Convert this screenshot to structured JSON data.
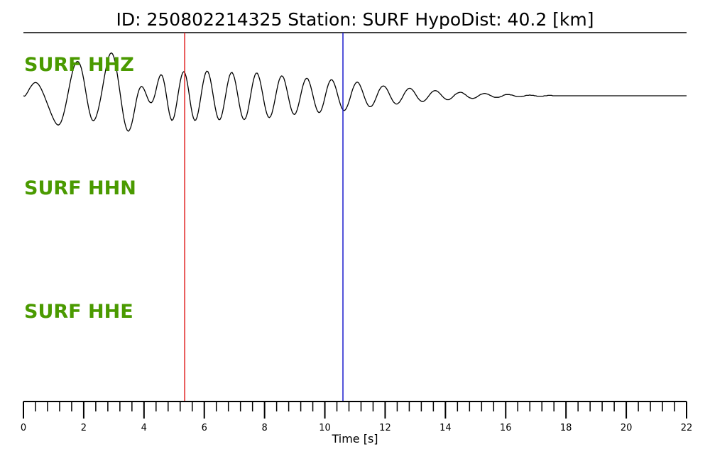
{
  "header": {
    "title": "ID: 250802214325   Station: SURF   HypoDist:    40.2 [km]"
  },
  "chart_data": {
    "type": "line",
    "xlabel": "Time [s]",
    "xlim": [
      0,
      22
    ],
    "x_ticks": [
      0,
      2,
      4,
      6,
      8,
      10,
      12,
      14,
      16,
      18,
      20,
      22
    ],
    "x_tick_labels": [
      "0",
      "2",
      "4",
      "6",
      "8",
      "10",
      "12",
      "14",
      "16",
      "18",
      "20",
      "22"
    ],
    "minor_tick_step": 0.4,
    "grid": false,
    "label_color": "#4a9a00",
    "line_color": "#000000",
    "markers": [
      {
        "time": 5.35,
        "color": "#e02020"
      },
      {
        "time": 10.6,
        "color": "#1a1acc"
      }
    ],
    "series": [
      {
        "name": "SURF HHZ",
        "x_step": 0.04,
        "values": [
          0.0,
          -0.01,
          0.02,
          0.07,
          0.12,
          0.18,
          0.23,
          0.27,
          0.31,
          0.33,
          0.34,
          0.33,
          0.31,
          0.27,
          0.22,
          0.16,
          0.09,
          0.02,
          -0.06,
          -0.14,
          -0.22,
          -0.3,
          -0.38,
          -0.46,
          -0.53,
          -0.6,
          -0.66,
          -0.71,
          -0.74,
          -0.75,
          -0.73,
          -0.69,
          -0.61,
          -0.51,
          -0.39,
          -0.25,
          -0.1,
          0.06,
          0.22,
          0.38,
          0.52,
          0.65,
          0.75,
          0.82,
          0.87,
          0.88,
          0.86,
          0.8,
          0.71,
          0.58,
          0.42,
          0.24,
          0.05,
          -0.13,
          -0.3,
          -0.44,
          -0.55,
          -0.62,
          -0.64,
          -0.62,
          -0.56,
          -0.47,
          -0.36,
          -0.22,
          -0.07,
          0.1,
          0.28,
          0.46,
          0.63,
          0.78,
          0.92,
          1.02,
          1.08,
          1.1,
          1.07,
          0.99,
          0.87,
          0.71,
          0.52,
          0.31,
          0.1,
          -0.12,
          -0.33,
          -0.52,
          -0.68,
          -0.8,
          -0.88,
          -0.91,
          -0.88,
          -0.81,
          -0.7,
          -0.56,
          -0.4,
          -0.23,
          -0.07,
          0.06,
          0.16,
          0.22,
          0.24,
          0.22,
          0.17,
          0.1,
          0.02,
          -0.06,
          -0.13,
          -0.17,
          -0.18,
          -0.15,
          -0.08,
          0.02,
          0.15,
          0.29,
          0.41,
          0.5,
          0.54,
          0.52,
          0.44,
          0.3,
          0.12,
          -0.08,
          -0.28,
          -0.45,
          -0.57,
          -0.63,
          -0.61,
          -0.53,
          -0.39,
          -0.21,
          -0.01,
          0.18,
          0.36,
          0.5,
          0.59,
          0.62,
          0.58,
          0.48,
          0.32,
          0.13,
          -0.08,
          -0.28,
          -0.45,
          -0.57,
          -0.63,
          -0.62,
          -0.55,
          -0.42,
          -0.25,
          -0.06,
          0.14,
          0.32,
          0.47,
          0.58,
          0.63,
          0.62,
          0.55,
          0.43,
          0.27,
          0.08,
          -0.11,
          -0.29,
          -0.44,
          -0.55,
          -0.61,
          -0.61,
          -0.55,
          -0.44,
          -0.29,
          -0.11,
          0.07,
          0.25,
          0.4,
          0.52,
          0.58,
          0.6,
          0.55,
          0.46,
          0.32,
          0.15,
          -0.03,
          -0.21,
          -0.37,
          -0.5,
          -0.58,
          -0.61,
          -0.59,
          -0.52,
          -0.4,
          -0.24,
          -0.06,
          0.12,
          0.29,
          0.43,
          0.53,
          0.58,
          0.58,
          0.52,
          0.42,
          0.28,
          0.12,
          -0.05,
          -0.22,
          -0.36,
          -0.47,
          -0.54,
          -0.56,
          -0.53,
          -0.46,
          -0.34,
          -0.2,
          -0.04,
          0.12,
          0.27,
          0.39,
          0.47,
          0.51,
          0.5,
          0.45,
          0.35,
          0.22,
          0.08,
          -0.07,
          -0.21,
          -0.33,
          -0.42,
          -0.47,
          -0.48,
          -0.44,
          -0.36,
          -0.25,
          -0.12,
          0.02,
          0.16,
          0.28,
          0.37,
          0.43,
          0.45,
          0.43,
          0.36,
          0.27,
          0.15,
          0.02,
          -0.11,
          -0.23,
          -0.33,
          -0.4,
          -0.43,
          -0.42,
          -0.37,
          -0.29,
          -0.18,
          -0.05,
          0.08,
          0.2,
          0.3,
          0.37,
          0.41,
          0.41,
          0.37,
          0.3,
          0.21,
          0.1,
          -0.02,
          -0.13,
          -0.23,
          -0.31,
          -0.36,
          -0.38,
          -0.36,
          -0.31,
          -0.24,
          -0.15,
          -0.05,
          0.06,
          0.16,
          0.24,
          0.3,
          0.34,
          0.35,
          0.33,
          0.28,
          0.21,
          0.13,
          0.04,
          -0.05,
          -0.13,
          -0.2,
          -0.25,
          -0.28,
          -0.28,
          -0.26,
          -0.22,
          -0.16,
          -0.09,
          -0.01,
          0.07,
          0.14,
          0.19,
          0.23,
          0.25,
          0.25,
          0.23,
          0.19,
          0.14,
          0.08,
          0.01,
          -0.05,
          -0.11,
          -0.16,
          -0.19,
          -0.21,
          -0.21,
          -0.19,
          -0.16,
          -0.11,
          -0.06,
          0.0,
          0.06,
          0.11,
          0.15,
          0.18,
          0.19,
          0.19,
          0.17,
          0.14,
          0.1,
          0.05,
          0.0,
          -0.05,
          -0.09,
          -0.12,
          -0.14,
          -0.15,
          -0.14,
          -0.12,
          -0.09,
          -0.05,
          -0.01,
          0.03,
          0.07,
          0.1,
          0.12,
          0.13,
          0.13,
          0.12,
          0.1,
          0.07,
          0.04,
          0.0,
          -0.03,
          -0.06,
          -0.08,
          -0.1,
          -0.1,
          -0.1,
          -0.08,
          -0.06,
          -0.03,
          0.0,
          0.03,
          0.05,
          0.07,
          0.08,
          0.09,
          0.09,
          0.08,
          0.06,
          0.04,
          0.02,
          -0.01,
          -0.03,
          -0.05,
          -0.06,
          -0.07,
          -0.07,
          -0.06,
          -0.05,
          -0.03,
          -0.01,
          0.01,
          0.03,
          0.04,
          0.05,
          0.06,
          0.06,
          0.05,
          0.04,
          0.03,
          0.01,
          0.0,
          -0.02,
          -0.03,
          -0.04,
          -0.04,
          -0.04,
          -0.04,
          -0.03,
          -0.02,
          -0.01,
          0.01,
          0.02,
          0.03,
          0.03,
          0.03,
          0.03,
          0.02,
          0.02,
          0.01,
          0.0,
          -0.01,
          -0.02,
          -0.02,
          -0.02,
          -0.02,
          -0.02,
          -0.01,
          -0.01,
          0.0,
          0.01,
          0.01,
          0.01,
          0.02,
          0.01,
          0.01,
          0.01,
          0.0,
          0.0,
          -0.01,
          -0.01,
          -0.01,
          -0.01,
          -0.01,
          -0.01,
          0.0,
          0.0,
          0.0,
          0.01,
          0.01,
          0.01,
          0.01,
          0.0,
          0.0,
          0.0,
          0.0,
          0.0,
          0.0,
          0.0,
          0.0,
          0.0,
          0.0,
          0.0,
          0.0,
          0.0,
          0.0,
          0.0,
          0.0,
          0.0,
          0.0,
          0.0,
          0.0,
          0.0,
          0.0,
          0.0,
          0.0,
          0.0,
          0.0,
          0.0,
          0.0,
          0.0,
          0.0,
          0.0,
          0.0,
          0.0,
          0.0,
          0.0,
          0.0,
          0.0,
          0.0,
          0.0,
          0.0,
          0.0,
          0.0,
          0.0,
          0.0,
          0.0,
          0.0,
          0.0,
          0.0,
          0.0,
          0.0,
          0.0,
          0.0,
          0.0,
          0.0,
          0.0,
          0.0,
          0.0,
          0.0,
          0.0,
          0.0,
          0.0,
          0.0,
          0.0,
          0.0,
          0.0,
          0.0,
          0.0,
          0.0,
          0.0,
          0.0,
          0.0,
          0.0,
          0.0,
          0.0,
          0.0,
          0.0,
          0.0,
          0.0,
          0.0,
          0.0,
          0.0,
          0.0,
          0.0,
          0.0,
          0.0,
          0.0,
          0.0,
          0.0,
          0.0,
          0.0,
          0.0,
          0.0,
          0.0,
          0.0,
          0.0,
          0.0,
          0.0,
          0.0,
          0.0,
          0.0,
          0.0,
          0.0,
          0.0,
          0.0,
          0.0,
          0.0,
          0.0,
          0.0,
          0.0,
          0.0,
          0.0,
          0.0,
          0.0,
          0.0,
          0.0,
          0.0,
          0.0,
          0.0,
          0.0,
          0.0,
          0.0,
          0.0,
          0.0,
          0.0,
          0.0,
          0.0,
          0.0,
          0.0,
          0.0,
          0.0,
          0.0,
          0.0,
          0.0,
          0.0,
          0.0,
          0.0,
          0.0,
          0.0,
          0.0,
          0.0,
          0.0,
          0.0,
          0.0,
          0.0,
          0.0,
          0.0,
          0.0,
          0.0,
          0.0,
          0.0
        ]
      },
      {
        "name": "SURF HHN",
        "x_step": 0.04,
        "values": []
      },
      {
        "name": "SURF HHE",
        "x_step": 0.04,
        "values": []
      }
    ]
  }
}
